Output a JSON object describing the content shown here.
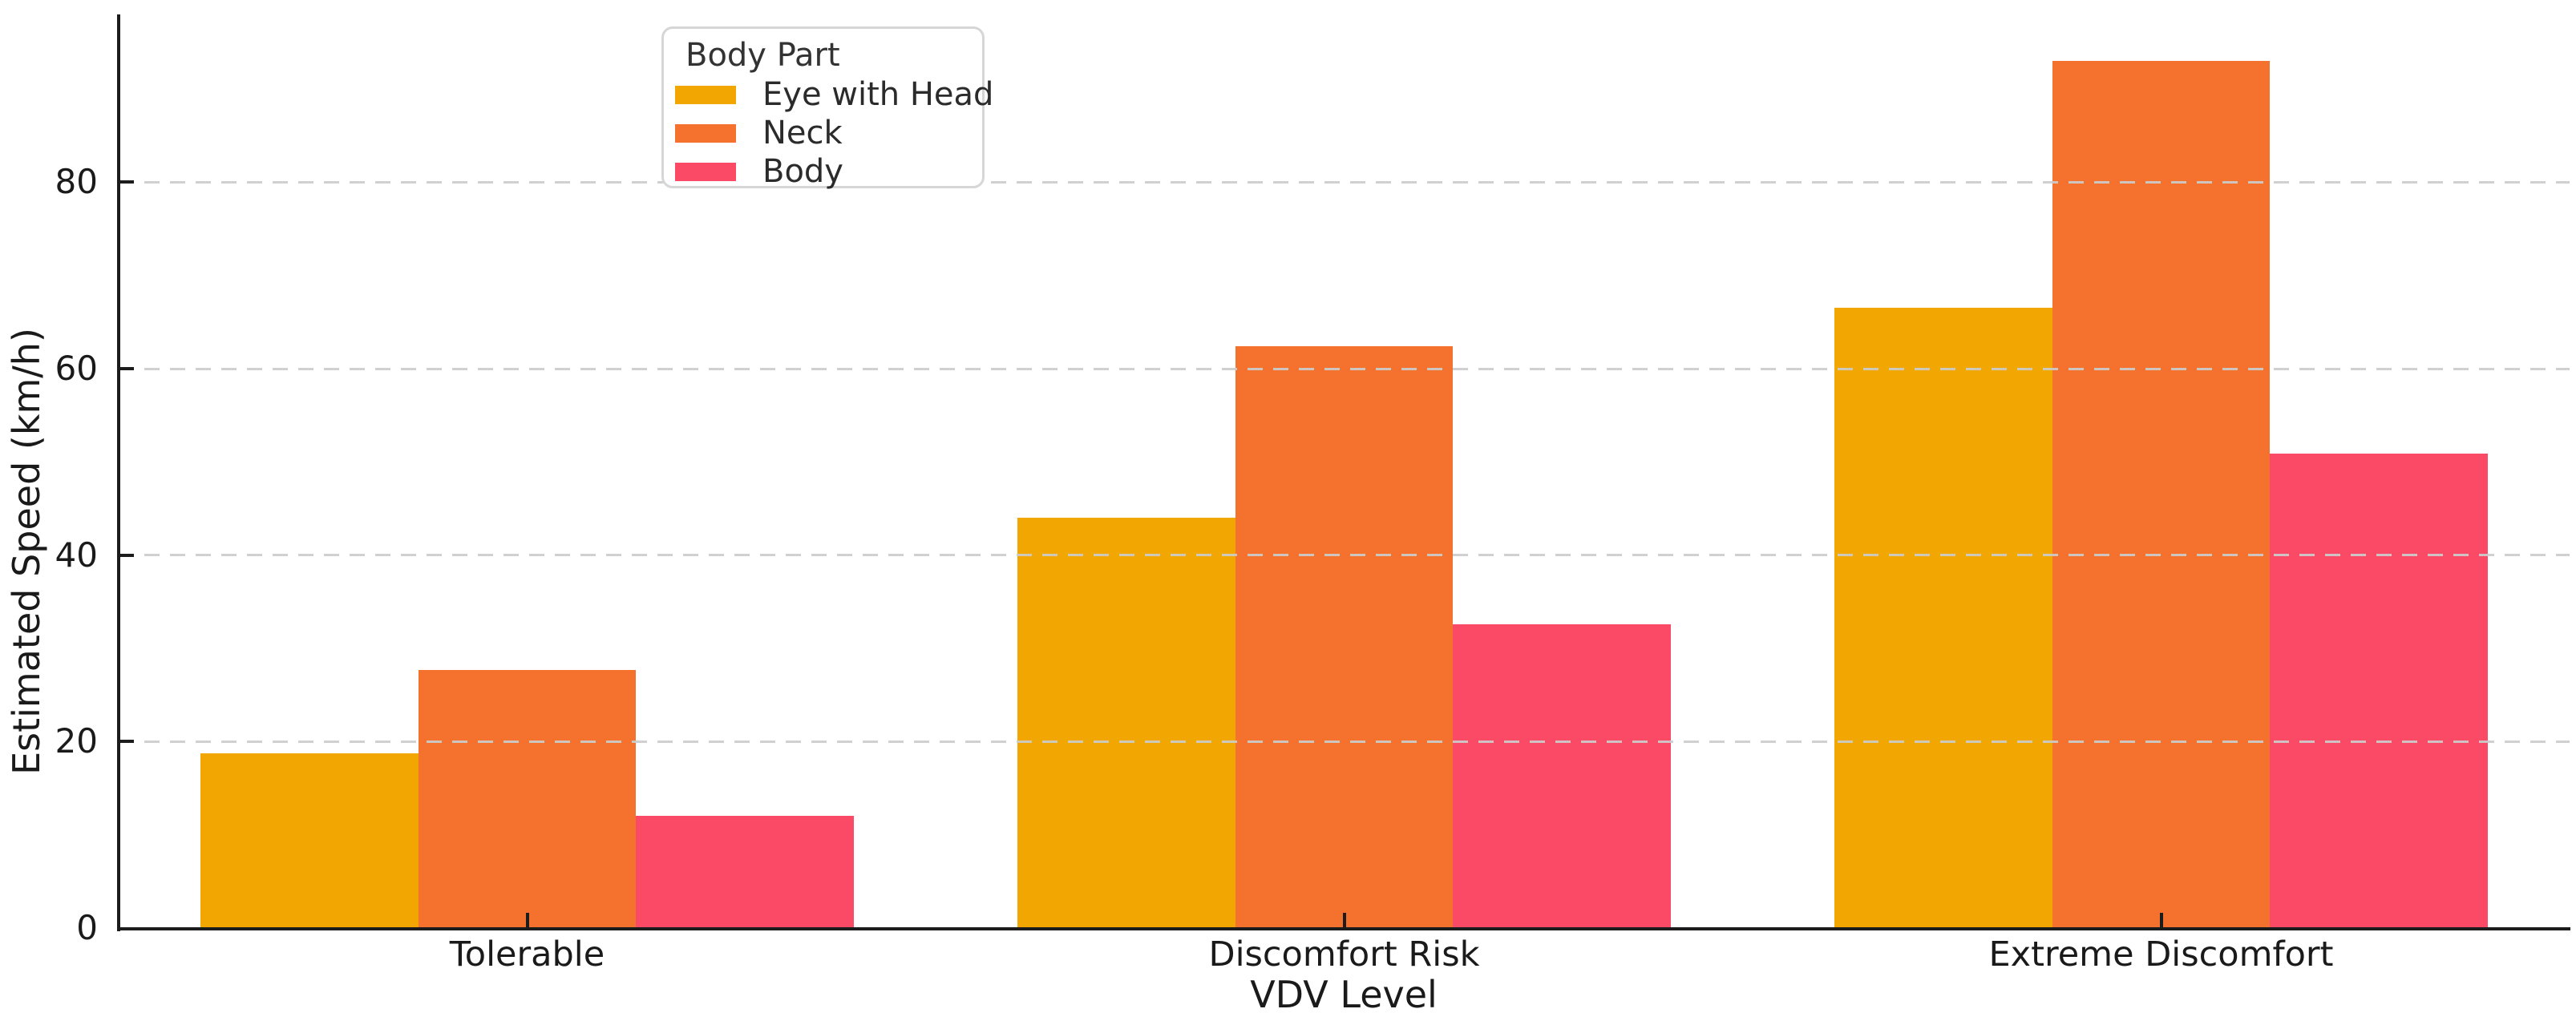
{
  "chart_data": {
    "type": "bar",
    "title": "",
    "xlabel": "VDV Level",
    "ylabel": "Estimated Speed (km/h)",
    "categories": [
      "Tolerable",
      "Discomfort Risk",
      "Extreme Discomfort"
    ],
    "series": [
      {
        "name": "Eye with Head",
        "color": "#F2A602",
        "values": [
          18.7,
          44.0,
          66.5
        ]
      },
      {
        "name": "Neck",
        "color": "#F5722E",
        "values": [
          27.7,
          62.4,
          93.0
        ]
      },
      {
        "name": "Body",
        "color": "#FB4A66",
        "values": [
          12.0,
          32.6,
          50.9
        ]
      }
    ],
    "legend": {
      "title": "Body Part",
      "position": "upper-left-inside"
    },
    "yticks": [
      0,
      20,
      40,
      60,
      80
    ],
    "ytick_labels": [
      "0",
      "20",
      "40",
      "60",
      "80"
    ],
    "ylim": [
      0,
      98
    ],
    "grid": {
      "axis": "y",
      "style": "dashed",
      "color": "#cccccc"
    },
    "bar_group_width": 0.8,
    "colors": {
      "spine": "#1c1c1c",
      "text": "#1a1a1a",
      "legend_border": "#d6d6d6"
    }
  }
}
